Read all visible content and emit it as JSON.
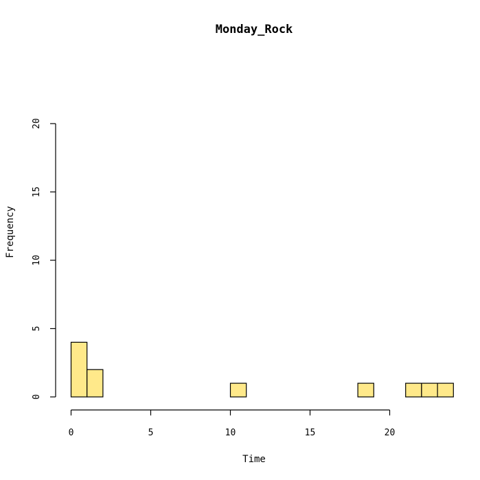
{
  "chart_data": {
    "type": "bar",
    "title": "Monday_Rock",
    "xlabel": "Time",
    "ylabel": "Frequency",
    "bin_edges": [
      0,
      1,
      2,
      3,
      4,
      5,
      6,
      7,
      8,
      9,
      10,
      11,
      12,
      13,
      14,
      15,
      16,
      17,
      18,
      19,
      20,
      21,
      22,
      23,
      24
    ],
    "values": [
      4,
      2,
      0,
      0,
      0,
      0,
      0,
      0,
      0,
      0,
      1,
      0,
      0,
      0,
      0,
      0,
      0,
      0,
      1,
      0,
      0,
      1,
      1,
      1
    ],
    "xlim": [
      0,
      24
    ],
    "ylim": [
      0,
      20
    ],
    "xticks": [
      "0",
      "5",
      "10",
      "15",
      "20"
    ],
    "yticks": [
      "0",
      "5",
      "10",
      "15",
      "20"
    ],
    "bar_color": "#ffe98a",
    "edge_color": "#000000",
    "grid": false
  }
}
